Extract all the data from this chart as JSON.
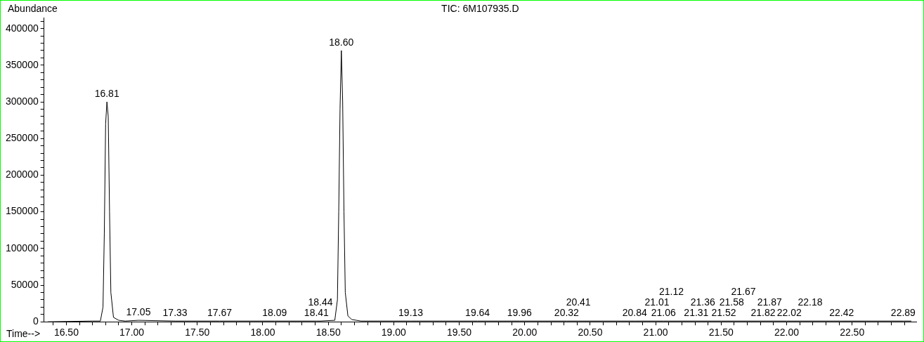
{
  "chart_data": {
    "type": "line",
    "title": "TIC: 6M107935.D",
    "xlabel": "Time-->",
    "ylabel": "Abundance",
    "xlim": [
      16.33,
      22.99
    ],
    "ylim": [
      0,
      415000
    ],
    "xticks": [
      {
        "value": 16.4,
        "label": null
      },
      {
        "value": 16.5,
        "label": "16.50"
      },
      {
        "value": 16.6,
        "label": null
      },
      {
        "value": 16.7,
        "label": null
      },
      {
        "value": 16.8,
        "label": null
      },
      {
        "value": 16.9,
        "label": null
      },
      {
        "value": 17.0,
        "label": "17.00"
      },
      {
        "value": 17.1,
        "label": null
      },
      {
        "value": 17.2,
        "label": null
      },
      {
        "value": 17.3,
        "label": null
      },
      {
        "value": 17.4,
        "label": null
      },
      {
        "value": 17.5,
        "label": "17.50"
      },
      {
        "value": 17.6,
        "label": null
      },
      {
        "value": 17.7,
        "label": null
      },
      {
        "value": 17.8,
        "label": null
      },
      {
        "value": 17.9,
        "label": null
      },
      {
        "value": 18.0,
        "label": "18.00"
      },
      {
        "value": 18.1,
        "label": null
      },
      {
        "value": 18.2,
        "label": null
      },
      {
        "value": 18.3,
        "label": null
      },
      {
        "value": 18.4,
        "label": null
      },
      {
        "value": 18.5,
        "label": "18.50"
      },
      {
        "value": 18.6,
        "label": null
      },
      {
        "value": 18.7,
        "label": null
      },
      {
        "value": 18.8,
        "label": null
      },
      {
        "value": 18.9,
        "label": null
      },
      {
        "value": 19.0,
        "label": "19.00"
      },
      {
        "value": 19.1,
        "label": null
      },
      {
        "value": 19.2,
        "label": null
      },
      {
        "value": 19.3,
        "label": null
      },
      {
        "value": 19.4,
        "label": null
      },
      {
        "value": 19.5,
        "label": "19.50"
      },
      {
        "value": 19.6,
        "label": null
      },
      {
        "value": 19.7,
        "label": null
      },
      {
        "value": 19.8,
        "label": null
      },
      {
        "value": 19.9,
        "label": null
      },
      {
        "value": 20.0,
        "label": "20.00"
      },
      {
        "value": 20.1,
        "label": null
      },
      {
        "value": 20.2,
        "label": null
      },
      {
        "value": 20.3,
        "label": null
      },
      {
        "value": 20.4,
        "label": null
      },
      {
        "value": 20.5,
        "label": "20.50"
      },
      {
        "value": 20.6,
        "label": null
      },
      {
        "value": 20.7,
        "label": null
      },
      {
        "value": 20.8,
        "label": null
      },
      {
        "value": 20.9,
        "label": null
      },
      {
        "value": 21.0,
        "label": "21.00"
      },
      {
        "value": 21.1,
        "label": null
      },
      {
        "value": 21.2,
        "label": null
      },
      {
        "value": 21.3,
        "label": null
      },
      {
        "value": 21.4,
        "label": null
      },
      {
        "value": 21.5,
        "label": "21.50"
      },
      {
        "value": 21.6,
        "label": null
      },
      {
        "value": 21.7,
        "label": null
      },
      {
        "value": 21.8,
        "label": null
      },
      {
        "value": 21.9,
        "label": null
      },
      {
        "value": 22.0,
        "label": "22.00"
      },
      {
        "value": 22.1,
        "label": null
      },
      {
        "value": 22.2,
        "label": null
      },
      {
        "value": 22.3,
        "label": null
      },
      {
        "value": 22.4,
        "label": null
      },
      {
        "value": 22.5,
        "label": "22.50"
      },
      {
        "value": 22.6,
        "label": null
      },
      {
        "value": 22.7,
        "label": null
      },
      {
        "value": 22.8,
        "label": null
      },
      {
        "value": 22.9,
        "label": null
      }
    ],
    "yticks": [
      0,
      {
        "value": 10000,
        "label": null
      },
      {
        "value": 20000,
        "label": null
      },
      {
        "value": 30000,
        "label": null
      },
      {
        "value": 40000,
        "label": null
      },
      50000,
      {
        "value": 60000,
        "label": null
      },
      {
        "value": 70000,
        "label": null
      },
      {
        "value": 80000,
        "label": null
      },
      {
        "value": 90000,
        "label": null
      },
      100000,
      {
        "value": 110000,
        "label": null
      },
      {
        "value": 120000,
        "label": null
      },
      {
        "value": 130000,
        "label": null
      },
      {
        "value": 140000,
        "label": null
      },
      150000,
      {
        "value": 160000,
        "label": null
      },
      {
        "value": 170000,
        "label": null
      },
      {
        "value": 180000,
        "label": null
      },
      {
        "value": 190000,
        "label": null
      },
      200000,
      {
        "value": 210000,
        "label": null
      },
      {
        "value": 220000,
        "label": null
      },
      {
        "value": 230000,
        "label": null
      },
      {
        "value": 240000,
        "label": null
      },
      250000,
      {
        "value": 260000,
        "label": null
      },
      {
        "value": 270000,
        "label": null
      },
      {
        "value": 280000,
        "label": null
      },
      {
        "value": 290000,
        "label": null
      },
      300000,
      {
        "value": 310000,
        "label": null
      },
      {
        "value": 320000,
        "label": null
      },
      {
        "value": 330000,
        "label": null
      },
      {
        "value": 340000,
        "label": null
      },
      350000,
      {
        "value": 360000,
        "label": null
      },
      {
        "value": 370000,
        "label": null
      },
      {
        "value": 380000,
        "label": null
      },
      {
        "value": 390000,
        "label": null
      },
      400000,
      {
        "value": 410000,
        "label": null
      }
    ],
    "grid": false,
    "legend": false,
    "marker": "none",
    "line_style": "solid",
    "x": [
      16.36,
      16.7,
      16.76,
      16.78,
      16.79,
      16.8,
      16.81,
      16.82,
      16.83,
      16.84,
      16.86,
      16.9,
      16.95,
      17.05,
      17.33,
      17.67,
      18.09,
      18.41,
      18.44,
      18.55,
      18.57,
      18.58,
      18.59,
      18.6,
      18.61,
      18.62,
      18.63,
      18.65,
      18.68,
      18.75,
      19.13,
      19.64,
      19.96,
      20.32,
      20.41,
      20.84,
      21.06,
      21.5,
      22.0,
      22.42,
      22.89,
      22.95
    ],
    "series": [
      {
        "color": "#000000",
        "values": [
          0,
          1000,
          1000,
          20000,
          120000,
          270000,
          300000,
          280000,
          150000,
          40000,
          6000,
          2000,
          1000,
          2000,
          1000,
          1000,
          1000,
          1000,
          1000,
          2000,
          30000,
          150000,
          290000,
          370000,
          300000,
          150000,
          40000,
          8000,
          3000,
          1000,
          1000,
          1000,
          1000,
          1000,
          1000,
          1000,
          1000,
          1000,
          1000,
          1000,
          1000,
          1000
        ]
      }
    ],
    "annotations": [
      {
        "text": "16.81",
        "x": 16.81,
        "y": 300000
      },
      {
        "text": "17.05",
        "x": 17.05,
        "y": 2000
      },
      {
        "text": "17.33",
        "x": 17.33,
        "y": 1000
      },
      {
        "text": "17.67",
        "x": 17.67,
        "y": 1000
      },
      {
        "text": "18.09",
        "x": 18.09,
        "y": 1000
      },
      {
        "text": "18.41",
        "x": 18.41,
        "y": 1000
      },
      {
        "text": "18.44",
        "x": 18.44,
        "y": 1000
      },
      {
        "text": "18.60",
        "x": 18.6,
        "y": 370000
      },
      {
        "text": "19.13",
        "x": 19.13,
        "y": 1000
      },
      {
        "text": "19.64",
        "x": 19.64,
        "y": 1000
      },
      {
        "text": "19.96",
        "x": 19.96,
        "y": 1000
      },
      {
        "text": "20.32",
        "x": 20.32,
        "y": 1000
      },
      {
        "text": "20.41",
        "x": 20.41,
        "y": 1000
      },
      {
        "text": "20.84",
        "x": 20.84,
        "y": 1000
      },
      {
        "text": "21.01",
        "x": 21.01,
        "y": 1000
      },
      {
        "text": "21.06",
        "x": 21.06,
        "y": 1000
      },
      {
        "text": "21.12",
        "x": 21.12,
        "y": 1000
      },
      {
        "text": "21.31",
        "x": 21.31,
        "y": 1000
      },
      {
        "text": "21.36",
        "x": 21.36,
        "y": 1000
      },
      {
        "text": "21.52",
        "x": 21.52,
        "y": 1000
      },
      {
        "text": "21.58",
        "x": 21.58,
        "y": 1000
      },
      {
        "text": "21.67",
        "x": 21.67,
        "y": 1000
      },
      {
        "text": "21.82",
        "x": 21.82,
        "y": 1000
      },
      {
        "text": "21.87",
        "x": 21.87,
        "y": 1000
      },
      {
        "text": "22.02",
        "x": 22.02,
        "y": 1000
      },
      {
        "text": "22.18",
        "x": 22.18,
        "y": 1000
      },
      {
        "text": "22.42",
        "x": 22.42,
        "y": 1000
      },
      {
        "text": "22.89",
        "x": 22.89,
        "y": 1000
      }
    ]
  }
}
